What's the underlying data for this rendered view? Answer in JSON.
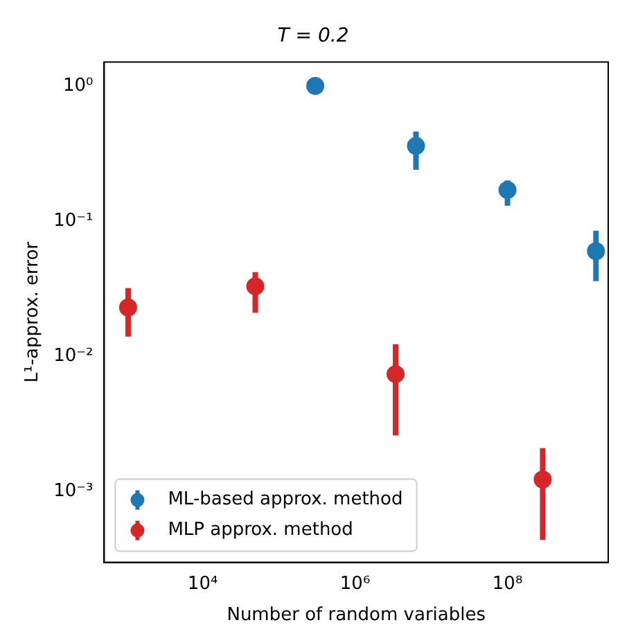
{
  "chart_data": {
    "type": "scatter",
    "title": "T = 0.2",
    "xlabel": "Number of random variables",
    "ylabel": "L¹-approx. error",
    "log": "xy",
    "grid": false,
    "legend": "bottom left",
    "marker": "circle",
    "xlim": [
      510,
      2100000000
    ],
    "ylim": [
      0.0003,
      1.5
    ],
    "xticks": [
      {
        "value": 10000,
        "label": "10⁴"
      },
      {
        "value": 1000000,
        "label": "10⁶"
      },
      {
        "value": 100000000,
        "label": "10⁸"
      }
    ],
    "yticks": [
      {
        "value": 0.001,
        "label": "10⁻³"
      },
      {
        "value": 0.01,
        "label": "10⁻²"
      },
      {
        "value": 0.1,
        "label": "10⁻¹"
      },
      {
        "value": 1,
        "label": "10⁰"
      }
    ],
    "series": [
      {
        "name": "ML-based approx. method",
        "color": "#1f77b4",
        "x": [
          300000,
          6300000,
          100000000,
          1450000000
        ],
        "values": [
          1.0,
          0.36,
          0.17,
          0.06
        ],
        "errors": [
          null,
          [
            0.24,
            0.46
          ],
          [
            0.13,
            0.2
          ],
          [
            0.036,
            0.085
          ]
        ]
      },
      {
        "name": "MLP approx. method",
        "color": "#d62728",
        "x": [
          1050,
          49000,
          3400000,
          290000000
        ],
        "values": [
          0.023,
          0.033,
          0.0074,
          0.00123
        ],
        "errors": [
          [
            0.014,
            0.032
          ],
          [
            0.021,
            0.042
          ],
          [
            0.0026,
            0.0123
          ],
          [
            0.00044,
            0.0021
          ]
        ]
      }
    ]
  }
}
